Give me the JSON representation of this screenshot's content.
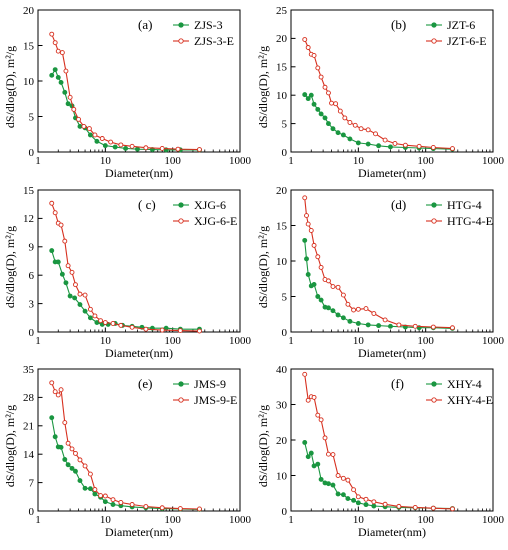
{
  "chart_data": [
    {
      "type": "line",
      "panel_label": "(a)",
      "xlabel": "Diameter(nm)",
      "ylabel": "dS/dlog(D), m²/g",
      "x_scale": "log",
      "xlim": [
        1,
        1000
      ],
      "ylim": [
        0,
        20
      ],
      "x_ticks": [
        1,
        10,
        100,
        1000
      ],
      "y_ticks": [
        0,
        5,
        10,
        15,
        20
      ],
      "legend_position": "top-right",
      "series": [
        {
          "name": "ZJS-3",
          "color": "#1a9641",
          "marker": "filled-circle",
          "x": [
            1.6,
            1.8,
            2.0,
            2.2,
            2.5,
            2.8,
            3.2,
            3.6,
            4.2,
            5.0,
            6.0,
            7.5,
            10,
            14,
            20,
            30,
            50,
            80,
            130,
            250
          ],
          "y": [
            10.8,
            11.6,
            10.5,
            9.8,
            8.4,
            6.8,
            6.5,
            4.8,
            3.6,
            3.4,
            2.4,
            1.5,
            0.9,
            0.7,
            0.5,
            0.4,
            0.35,
            0.3,
            0.3,
            0.3
          ]
        },
        {
          "name": "ZJS-3-E",
          "color": "#d7301f",
          "marker": "open-circle",
          "x": [
            1.6,
            1.8,
            2.0,
            2.3,
            2.6,
            3.0,
            3.4,
            4.0,
            4.8,
            5.8,
            7.0,
            9.0,
            12,
            17,
            25,
            40,
            70,
            120,
            250
          ],
          "y": [
            16.6,
            15.4,
            14.2,
            14.0,
            11.4,
            7.7,
            6.0,
            4.6,
            3.6,
            3.3,
            2.4,
            1.9,
            1.4,
            1.0,
            0.8,
            0.6,
            0.5,
            0.4,
            0.35
          ]
        }
      ]
    },
    {
      "type": "line",
      "panel_label": "(b)",
      "xlabel": "Diameter(nm)",
      "ylabel": "dS/dlog(D), m²/g",
      "x_scale": "log",
      "xlim": [
        1,
        1000
      ],
      "ylim": [
        0,
        25
      ],
      "x_ticks": [
        1,
        10,
        100,
        1000
      ],
      "y_ticks": [
        0,
        5,
        10,
        15,
        20,
        25
      ],
      "legend_position": "top-right",
      "series": [
        {
          "name": "JZT-6",
          "color": "#1a9641",
          "marker": "filled-circle",
          "x": [
            1.6,
            1.8,
            2.0,
            2.2,
            2.5,
            2.8,
            3.2,
            3.6,
            4.2,
            5.0,
            6.0,
            7.5,
            10,
            14,
            20,
            30,
            50,
            80,
            130,
            250
          ],
          "y": [
            10.1,
            9.4,
            10.0,
            8.4,
            7.5,
            6.7,
            6.0,
            5.0,
            4.1,
            3.4,
            3.0,
            2.3,
            1.6,
            1.4,
            1.1,
            0.9,
            0.8,
            0.7,
            0.6,
            0.5
          ]
        },
        {
          "name": "JZT-6-E",
          "color": "#d7301f",
          "marker": "open-circle",
          "x": [
            1.6,
            1.8,
            2.0,
            2.2,
            2.5,
            2.8,
            3.2,
            3.6,
            4.0,
            4.6,
            5.4,
            6.3,
            7.5,
            9.0,
            11,
            14,
            18,
            25,
            35,
            50,
            80,
            130,
            250
          ],
          "y": [
            19.8,
            18.4,
            17.2,
            17.0,
            14.8,
            13.2,
            11.4,
            10.4,
            8.6,
            8.5,
            7.2,
            6.0,
            5.2,
            4.7,
            4.1,
            3.9,
            3.2,
            2.1,
            1.5,
            1.2,
            1.0,
            0.8,
            0.6
          ]
        }
      ]
    },
    {
      "type": "line",
      "panel_label": "( c)",
      "xlabel": "Diameter(nm)",
      "ylabel": "dS/dlog(D), m²/g",
      "x_scale": "log",
      "xlim": [
        1,
        1000
      ],
      "ylim": [
        0,
        15
      ],
      "x_ticks": [
        1,
        10,
        100,
        1000
      ],
      "y_ticks": [
        0,
        3,
        6,
        9,
        12,
        15
      ],
      "legend_position": "top-right",
      "series": [
        {
          "name": "XJG-6",
          "color": "#1a9641",
          "marker": "filled-circle",
          "x": [
            1.6,
            1.8,
            2.0,
            2.3,
            2.6,
            3.0,
            3.5,
            4.2,
            5.0,
            6.0,
            7.5,
            9.0,
            11,
            14,
            18,
            25,
            35,
            50,
            80,
            130,
            250
          ],
          "y": [
            8.6,
            7.4,
            7.4,
            6.1,
            5.2,
            3.8,
            3.6,
            2.9,
            2.2,
            1.5,
            1.0,
            0.8,
            0.8,
            0.9,
            0.7,
            0.6,
            0.5,
            0.4,
            0.4,
            0.3,
            0.3
          ]
        },
        {
          "name": "XJG-6-E",
          "color": "#d7301f",
          "marker": "open-circle",
          "x": [
            1.6,
            1.8,
            2.0,
            2.2,
            2.5,
            2.8,
            3.2,
            3.6,
            4.2,
            5.0,
            6.0,
            7.0,
            8.5,
            10,
            13,
            17,
            25,
            40,
            70,
            130,
            250
          ],
          "y": [
            13.6,
            12.6,
            11.5,
            11.3,
            9.6,
            7.0,
            6.3,
            5.0,
            4.0,
            3.9,
            2.4,
            1.7,
            1.2,
            1.0,
            0.9,
            0.7,
            0.5,
            0.3,
            0.2,
            0.15,
            0.1
          ]
        }
      ]
    },
    {
      "type": "line",
      "panel_label": "(d)",
      "xlabel": "Diameter(nm)",
      "ylabel": "dS/dlog(D), m²/g",
      "x_scale": "log",
      "xlim": [
        1,
        1000
      ],
      "ylim": [
        0,
        20
      ],
      "x_ticks": [
        1,
        10,
        100,
        1000
      ],
      "y_ticks": [
        0,
        5,
        10,
        15,
        20
      ],
      "legend_position": "top-right",
      "series": [
        {
          "name": "HTG-4",
          "color": "#1a9641",
          "marker": "filled-circle",
          "x": [
            1.6,
            1.7,
            1.8,
            2.0,
            2.2,
            2.5,
            2.8,
            3.2,
            3.6,
            4.2,
            5.0,
            6.0,
            7.5,
            10,
            14,
            20,
            30,
            50,
            80,
            130,
            250
          ],
          "y": [
            12.9,
            10.3,
            8.1,
            6.5,
            6.7,
            5.0,
            4.5,
            3.5,
            3.4,
            3.0,
            2.4,
            2.0,
            1.5,
            1.2,
            1.0,
            0.9,
            0.8,
            0.7,
            0.6,
            0.6,
            0.5
          ]
        },
        {
          "name": "HTG-4-E",
          "color": "#d7301f",
          "marker": "open-circle",
          "x": [
            1.6,
            1.7,
            1.8,
            2.0,
            2.2,
            2.5,
            2.8,
            3.2,
            3.6,
            4.2,
            5.0,
            6.0,
            7.0,
            8.5,
            10,
            13,
            17,
            25,
            40,
            70,
            130,
            250
          ],
          "y": [
            18.9,
            16.4,
            15.2,
            14.3,
            12.2,
            10.6,
            9.1,
            7.4,
            7.2,
            6.4,
            6.3,
            5.2,
            3.9,
            3.1,
            3.2,
            3.3,
            2.6,
            1.7,
            1.0,
            0.8,
            0.7,
            0.6
          ]
        }
      ]
    },
    {
      "type": "line",
      "panel_label": "(e)",
      "xlabel": "Diameter(nm)",
      "ylabel": "dS/dlog(D), m²/g",
      "x_scale": "log",
      "xlim": [
        1,
        1000
      ],
      "ylim": [
        0,
        35
      ],
      "x_ticks": [
        1,
        10,
        100,
        1000
      ],
      "y_ticks": [
        0,
        7,
        14,
        21,
        28,
        35
      ],
      "legend_position": "top-right",
      "series": [
        {
          "name": "JMS-9",
          "color": "#1a9641",
          "marker": "filled-circle",
          "x": [
            1.6,
            1.8,
            2.0,
            2.2,
            2.5,
            2.8,
            3.2,
            3.6,
            4.2,
            5.0,
            6.0,
            7.0,
            8.5,
            10,
            13,
            17,
            25,
            40,
            70,
            130,
            250
          ],
          "y": [
            23.0,
            18.3,
            15.8,
            15.7,
            12.7,
            11.4,
            10.5,
            9.8,
            7.5,
            5.6,
            5.5,
            4.2,
            3.4,
            2.3,
            1.6,
            1.3,
            1.0,
            0.8,
            0.6,
            0.5,
            0.4
          ]
        },
        {
          "name": "JMS-9-E",
          "color": "#d7301f",
          "marker": "open-circle",
          "x": [
            1.6,
            1.8,
            2.0,
            2.2,
            2.5,
            2.8,
            3.2,
            3.6,
            4.2,
            5.0,
            6.0,
            7.0,
            8.5,
            10,
            13,
            17,
            25,
            40,
            70,
            130,
            250
          ],
          "y": [
            31.6,
            29.4,
            28.6,
            29.9,
            21.8,
            16.7,
            15.3,
            14.2,
            12.6,
            11.1,
            9.1,
            5.3,
            3.8,
            3.7,
            2.8,
            2.1,
            1.6,
            1.1,
            0.8,
            0.6,
            0.5
          ]
        }
      ]
    },
    {
      "type": "line",
      "panel_label": "(f)",
      "xlabel": "Diameter(nm)",
      "ylabel": "dS/dlog(D), m²/g",
      "x_scale": "log",
      "xlim": [
        1,
        1000
      ],
      "ylim": [
        0,
        40
      ],
      "x_ticks": [
        1,
        10,
        100,
        1000
      ],
      "y_ticks": [
        0,
        10,
        20,
        30,
        40
      ],
      "legend_position": "top-right",
      "series": [
        {
          "name": "XHY-4",
          "color": "#1a9641",
          "marker": "filled-circle",
          "x": [
            1.6,
            1.8,
            2.0,
            2.2,
            2.5,
            2.8,
            3.2,
            3.6,
            4.2,
            5.0,
            6.0,
            7.0,
            8.5,
            10,
            13,
            17,
            25,
            40,
            70,
            130,
            250
          ],
          "y": [
            19.3,
            15.3,
            16.3,
            12.7,
            13.2,
            8.9,
            7.9,
            7.7,
            7.3,
            4.8,
            4.6,
            3.5,
            3.0,
            2.3,
            1.8,
            1.4,
            1.2,
            1.0,
            0.9,
            0.8,
            0.7
          ]
        },
        {
          "name": "XHY-4-E",
          "color": "#d7301f",
          "marker": "open-circle",
          "x": [
            1.6,
            1.8,
            2.0,
            2.2,
            2.5,
            2.8,
            3.2,
            3.6,
            4.2,
            5.0,
            6.0,
            7.0,
            8.5,
            10,
            13,
            17,
            25,
            40,
            70,
            130,
            250
          ],
          "y": [
            38.5,
            31.2,
            32.2,
            32.0,
            27.0,
            25.7,
            20.6,
            16.0,
            15.9,
            10.0,
            9.2,
            8.7,
            6.0,
            4.0,
            3.3,
            2.6,
            1.9,
            1.3,
            1.0,
            0.8,
            0.6
          ]
        }
      ]
    }
  ]
}
